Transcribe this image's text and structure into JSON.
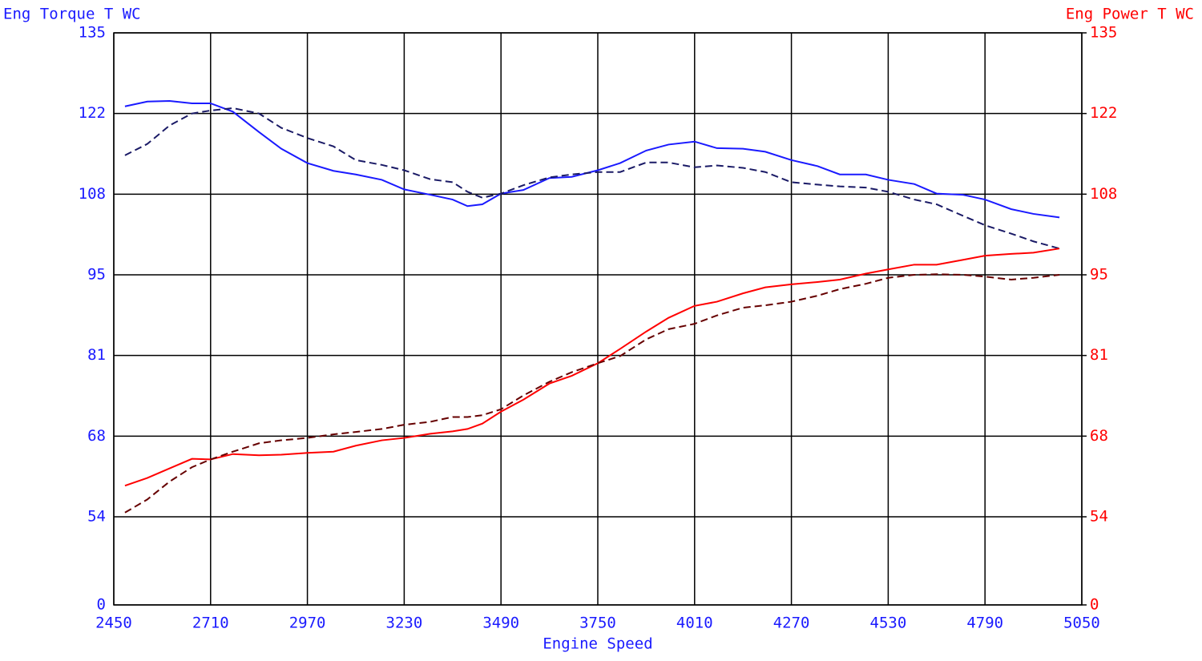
{
  "chart_data": {
    "type": "line",
    "y_title": "Eng Torque T WC",
    "y2_title": "Eng Power T WC",
    "x_title": "Engine Speed",
    "xlim": [
      2450,
      5050
    ],
    "xticks": [
      2450,
      2710,
      2970,
      3230,
      3490,
      3750,
      4010,
      4270,
      4530,
      4790,
      5050
    ],
    "ylim": [
      0,
      135
    ],
    "yticks": [
      0,
      54,
      {
        "value": 67.5,
        "label": "68"
      },
      81,
      {
        "value": 94.5,
        "label": "95"
      },
      108,
      {
        "value": 121.5,
        "label": "122"
      },
      135
    ],
    "y2lim": [
      0,
      135
    ],
    "y2ticks": [
      0,
      54,
      {
        "value": 67.5,
        "label": "68"
      },
      81,
      {
        "value": 94.5,
        "label": "95"
      },
      108,
      {
        "value": 121.5,
        "label": "122"
      },
      135
    ],
    "grid": true,
    "x": [
      2480,
      2540,
      2600,
      2660,
      2710,
      2770,
      2840,
      2900,
      2970,
      3040,
      3100,
      3170,
      3230,
      3300,
      3360,
      3400,
      3440,
      3490,
      3550,
      3620,
      3680,
      3750,
      3810,
      3880,
      3940,
      4010,
      4070,
      4140,
      4200,
      4270,
      4340,
      4400,
      4470,
      4530,
      4600,
      4660,
      4730,
      4790,
      4860,
      4920,
      4990
    ],
    "series": [
      {
        "color": "#1a1aff",
        "dashed": false,
        "axis": "y",
        "values": [
          122.7,
          123.5,
          123.6,
          123.2,
          123.2,
          121.8,
          118.4,
          115.6,
          113.2,
          111.9,
          111.3,
          110.4,
          108.8,
          107.9,
          107.1,
          106.0,
          106.3,
          108.1,
          108.7,
          110.7,
          110.9,
          112.0,
          113.2,
          115.3,
          116.3,
          116.8,
          115.7,
          115.6,
          115.1,
          113.7,
          112.7,
          111.3,
          111.3,
          110.4,
          109.7,
          108.1,
          107.9,
          107.1,
          105.5,
          104.7,
          104.1
        ]
      },
      {
        "color": "#1a1a66",
        "dashed": true,
        "axis": "y",
        "values": [
          114.5,
          116.4,
          119.5,
          121.5,
          122.0,
          122.4,
          121.5,
          119.1,
          117.4,
          116.0,
          113.7,
          112.9,
          112.0,
          110.5,
          110.0,
          108.4,
          107.4,
          108.1,
          109.5,
          110.8,
          111.3,
          111.7,
          111.7,
          113.3,
          113.3,
          112.5,
          112.8,
          112.4,
          111.7,
          110.0,
          109.6,
          109.3,
          109.1,
          108.4,
          107.1,
          106.3,
          104.4,
          102.8,
          101.4,
          100.1,
          98.9
        ]
      },
      {
        "color": "#ff0000",
        "dashed": false,
        "axis": "y2",
        "values": [
          59.2,
          60.5,
          62.1,
          63.7,
          63.6,
          64.5,
          64.3,
          64.4,
          64.7,
          64.9,
          65.9,
          66.8,
          67.2,
          67.9,
          68.3,
          68.7,
          69.6,
          71.6,
          73.6,
          76.3,
          77.6,
          79.7,
          82.1,
          85.0,
          87.3,
          89.3,
          90.0,
          91.4,
          92.4,
          92.9,
          93.3,
          93.7,
          94.7,
          95.4,
          96.2,
          96.2,
          97.0,
          97.7,
          98.0,
          98.2,
          98.9
        ]
      },
      {
        "color": "#660000",
        "dashed": true,
        "axis": "y2",
        "values": [
          54.7,
          56.9,
          59.9,
          62.3,
          63.6,
          64.9,
          66.3,
          66.8,
          67.2,
          67.8,
          68.2,
          68.7,
          69.4,
          69.9,
          70.7,
          70.7,
          71.0,
          72.0,
          74.3,
          76.6,
          78.2,
          79.7,
          80.9,
          83.7,
          85.4,
          86.3,
          87.7,
          89.0,
          89.4,
          90.0,
          91.0,
          92.1,
          93.0,
          94.0,
          94.5,
          94.6,
          94.5,
          94.2,
          93.7,
          94.0,
          94.5
        ]
      }
    ]
  }
}
